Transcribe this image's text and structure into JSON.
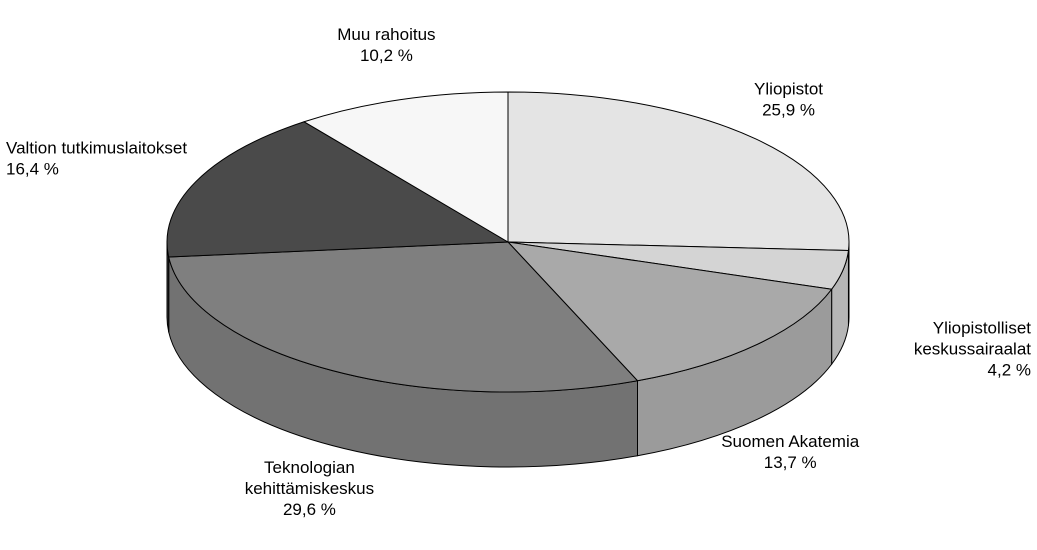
{
  "chart_data": {
    "type": "pie",
    "title": "",
    "style": "3d",
    "categories": [
      "Yliopistot",
      "Yliopistolliset keskussairaalat",
      "Suomen Akatemia",
      "Teknologian kehittämiskeskus",
      "Valtion tutkimuslaitokset",
      "Muu rahoitus"
    ],
    "values": [
      25.9,
      4.2,
      13.7,
      29.6,
      16.4,
      10.2
    ],
    "value_labels": [
      "25,9 %",
      "4,2 %",
      "13,7 %",
      "29,6 %",
      "16,4 %",
      "10,2 %"
    ],
    "label_lines": [
      [
        "Yliopistot"
      ],
      [
        "Yliopistolliset",
        "keskussairaalat"
      ],
      [
        "Suomen Akatemia"
      ],
      [
        "Teknologian",
        "kehittämiskeskus"
      ],
      [
        "Valtion tutkimuslaitokset"
      ],
      [
        "Muu rahoitus"
      ]
    ],
    "colors": [
      "#e4e4e4",
      "#d4d4d4",
      "#a9a9a9",
      "#7f7f7f",
      "#4a4a4a",
      "#f7f7f7"
    ],
    "side_colors": [
      "#c4c4c4",
      "#b6b6b6",
      "#9b9b9b",
      "#727272",
      "#3c3c3c",
      "#dcdcdc"
    ]
  }
}
